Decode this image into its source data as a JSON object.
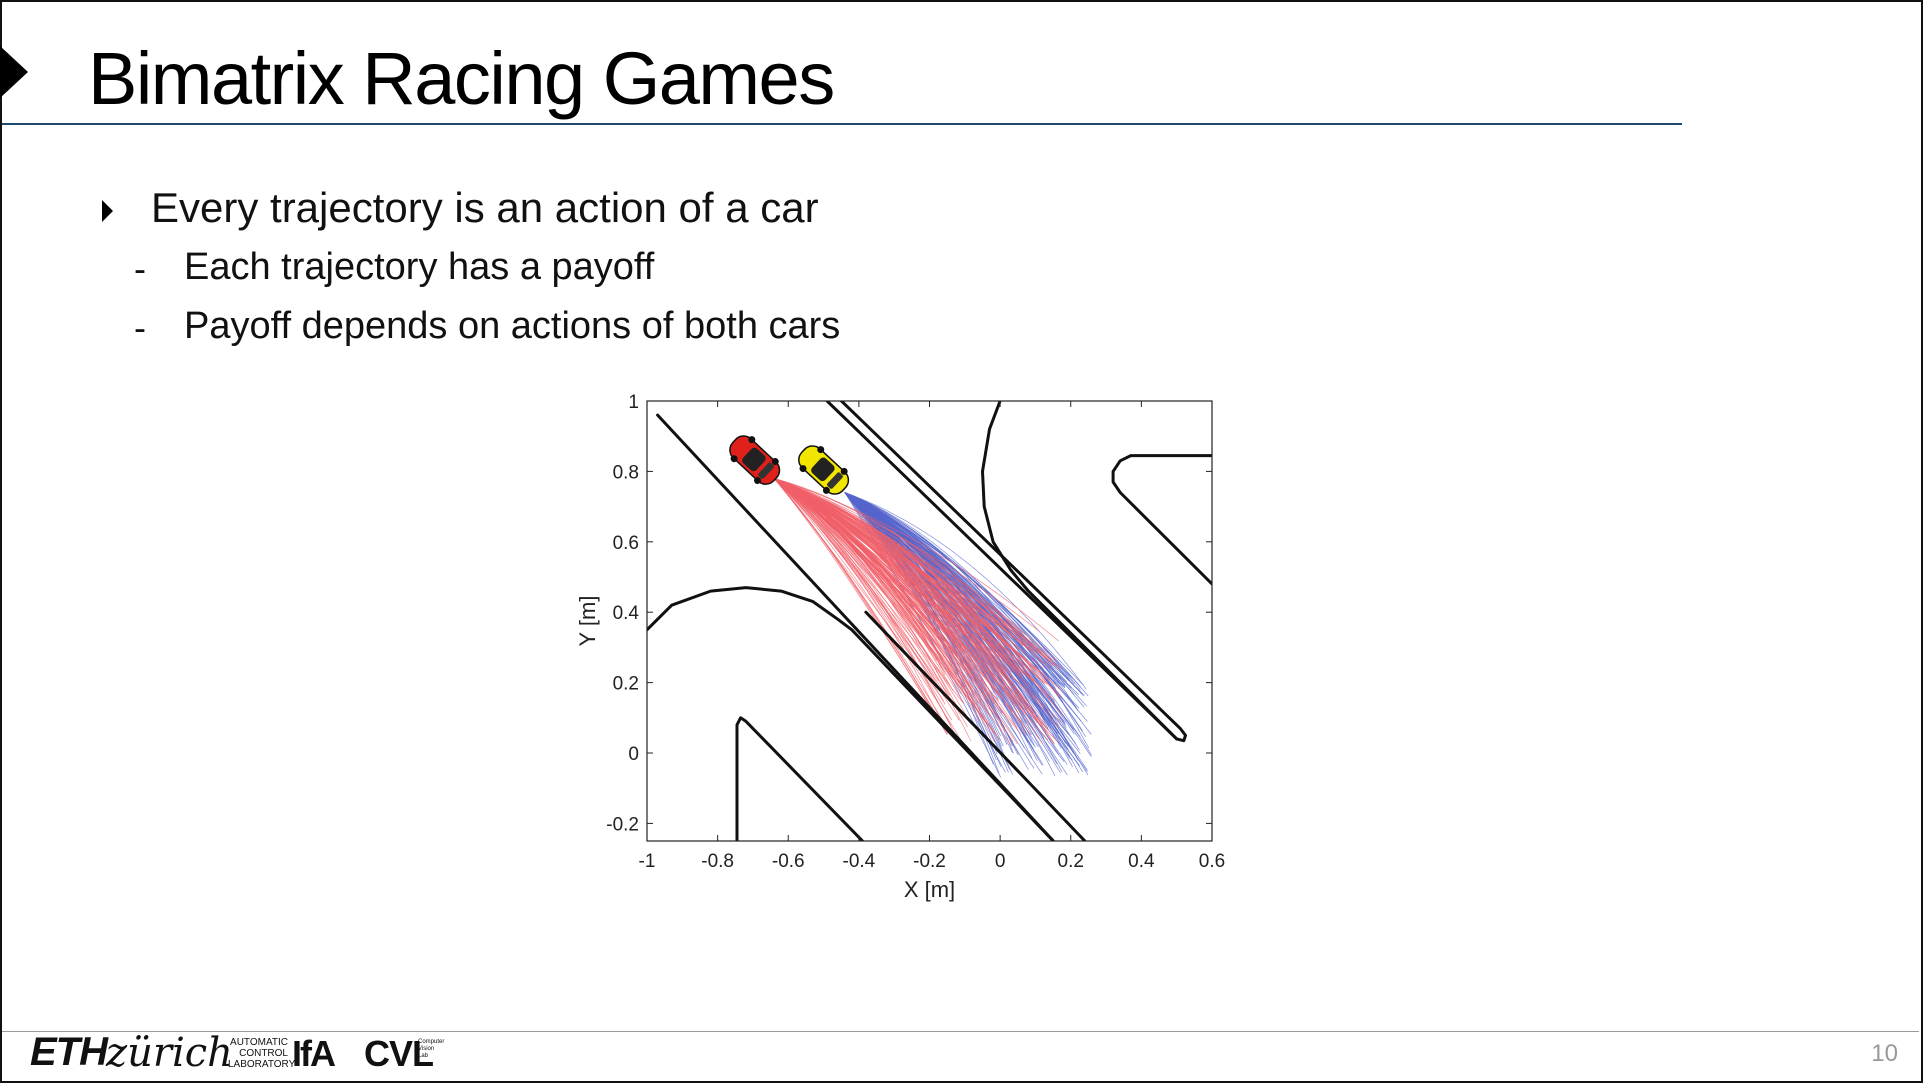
{
  "slide": {
    "title": "Bimatrix Racing Games",
    "bullets": [
      {
        "text": "Every trajectory is an action of a car"
      }
    ],
    "sub_bullets": [
      {
        "dash": "-",
        "text": "Each trajectory has a payoff"
      },
      {
        "dash": "-",
        "text": "Payoff depends on actions of both cars"
      }
    ],
    "page_number": "10"
  },
  "footer": {
    "eth_bold": "ETH",
    "eth_italic": "zürich",
    "acl_lines": [
      "AUTOMATIC",
      "CONTROL",
      "LABORATORY"
    ],
    "ifa": "IfA",
    "cvl": "CVL",
    "cvl_small": [
      "Computer",
      "Vision",
      "Lab"
    ]
  },
  "chart_data": {
    "type": "line",
    "xlabel": "X [m]",
    "ylabel": "Y [m]",
    "xlim": [
      -1,
      0.6
    ],
    "ylim": [
      -0.25,
      1
    ],
    "x_ticks": [
      "-1",
      "-0.8",
      "-0.6",
      "-0.4",
      "-0.2",
      "0",
      "0.2",
      "0.4",
      "0.6"
    ],
    "y_ticks": [
      "-0.2",
      "0",
      "0.2",
      "0.4",
      "0.6",
      "0.8",
      "1"
    ],
    "colors": {
      "red_car": "#e0201a",
      "yellow_car": "#f2e600",
      "red_traj": "#f0606a",
      "blue_traj": "#5566cc",
      "track": "#111111"
    },
    "cars": [
      {
        "name": "red-car",
        "x": -0.695,
        "y": 0.832
      },
      {
        "name": "yellow-car",
        "x": -0.5,
        "y": 0.804
      }
    ],
    "trajectory_fans": [
      {
        "color": "blue",
        "start": [
          -0.44,
          0.74
        ],
        "end_x_range": [
          -0.02,
          0.26
        ],
        "end_y_range": [
          -0.07,
          0.22
        ]
      },
      {
        "color": "red",
        "start": [
          -0.64,
          0.78
        ],
        "end_x_range": [
          -0.18,
          0.18
        ],
        "end_y_range": [
          0.02,
          0.35
        ]
      }
    ]
  }
}
